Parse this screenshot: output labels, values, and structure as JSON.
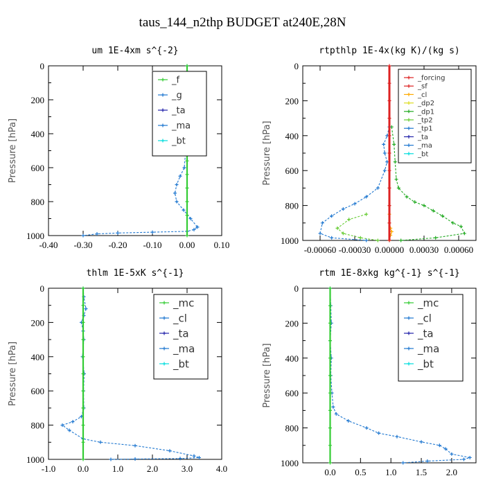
{
  "figure_title": "taus_144_n2thp  BUDGET at240E,28N",
  "chart_data": [
    {
      "type": "line",
      "title": "um   1E-4xm s^{-2}",
      "ylabel": "Pressure [hPa]",
      "xlabel": "",
      "xlim": [
        -0.4,
        0.1
      ],
      "ylim": [
        1000,
        0
      ],
      "xticks": [
        "-0.40",
        "-0.30",
        "-0.20",
        "-0.10",
        "0.00",
        "0.10"
      ],
      "xtick_values": [
        -0.4,
        -0.3,
        -0.2,
        -0.1,
        0.0,
        0.1
      ],
      "yticks": [
        "0",
        "200",
        "400",
        "600",
        "800",
        "1000"
      ],
      "legend": [
        "_f",
        "_g",
        "_ta",
        "_ma",
        "_bt"
      ],
      "legend_placement": "top-right",
      "series": [
        {
          "name": "_f",
          "color": "#33cc33",
          "x": [
            0.0,
            0.0,
            0.0,
            0.0,
            0.0,
            0.0,
            0.0,
            0.0,
            0.0,
            0.0,
            0.0,
            0.0,
            0.0
          ],
          "y": [
            0,
            80,
            160,
            240,
            320,
            400,
            480,
            560,
            640,
            720,
            800,
            880,
            1000
          ]
        },
        {
          "name": "_g",
          "color": "#1f77d0",
          "x": [
            0.0,
            0.002,
            -0.003,
            0.004,
            -0.002,
            0.003,
            -0.005,
            0.0,
            -0.004,
            -0.008,
            -0.02,
            -0.03,
            -0.035,
            -0.03,
            -0.01,
            0.01,
            0.03,
            0.02,
            0.0,
            -0.1,
            -0.2,
            -0.26,
            -0.3
          ],
          "y": [
            0,
            50,
            100,
            150,
            200,
            250,
            300,
            400,
            500,
            600,
            650,
            700,
            750,
            800,
            850,
            900,
            950,
            965,
            975,
            980,
            985,
            990,
            1000
          ]
        },
        {
          "name": "_ta",
          "color": "#2222aa",
          "x": [],
          "y": []
        },
        {
          "name": "_ma",
          "color": "#1f77d0",
          "x": [],
          "y": []
        },
        {
          "name": "_bt",
          "color": "#00dddd",
          "x": [],
          "y": []
        }
      ]
    },
    {
      "type": "line",
      "title": "rtpthlp   1E-4x(kg K)/(kg s)",
      "ylabel": "Pressure [hPa]",
      "xlabel": "",
      "xlim": [
        -0.00075,
        0.00075
      ],
      "ylim": [
        1000,
        0
      ],
      "xticks": [
        "-0.00060",
        "-0.00030",
        "0.00000",
        "0.00030",
        "0.00060"
      ],
      "xtick_values": [
        -0.0006,
        -0.0003,
        0.0,
        0.0003,
        0.0006
      ],
      "yticks": [
        "0",
        "200",
        "400",
        "600",
        "800",
        "1000"
      ],
      "legend": [
        "_forcing",
        "_sf",
        "_cl",
        "_dp2",
        "_dp1",
        "_tp2",
        "_tp1",
        "_ta",
        "_ma",
        "_bt"
      ],
      "legend_placement": "top-right",
      "series": [
        {
          "name": "_forcing",
          "color": "#dd2222",
          "x": [
            0,
            0,
            0,
            0,
            0,
            0,
            0,
            0,
            0,
            0,
            0
          ],
          "y": [
            0,
            100,
            200,
            300,
            400,
            500,
            600,
            700,
            800,
            900,
            1000
          ]
        },
        {
          "name": "_sf",
          "color": "#dd2222",
          "x": [],
          "y": []
        },
        {
          "name": "_cl",
          "color": "#ffaa00",
          "x": [
            0,
            0,
            0,
            1e-05,
            2e-05,
            1e-05,
            0
          ],
          "y": [
            800,
            850,
            900,
            930,
            950,
            970,
            1000
          ]
        },
        {
          "name": "_dp2",
          "color": "#dddd22",
          "x": [],
          "y": []
        },
        {
          "name": "_dp1",
          "color": "#22aa22",
          "x": [
            2e-05,
            4e-05,
            5e-05,
            6e-05,
            8e-05,
            0.00015,
            0.00022,
            0.0003,
            0.00038,
            0.00046,
            0.00055,
            0.00062,
            0.00065,
            0.0004,
            0.0001
          ],
          "y": [
            350,
            450,
            550,
            650,
            700,
            750,
            780,
            800,
            830,
            860,
            900,
            920,
            960,
            985,
            1000
          ]
        },
        {
          "name": "_tp2",
          "color": "#66cc33",
          "x": [
            -0.0002,
            -0.00035,
            -0.00045,
            -0.0004,
            -0.00025,
            -0.0001
          ],
          "y": [
            850,
            880,
            930,
            960,
            985,
            1000
          ]
        },
        {
          "name": "_tp1",
          "color": "#1f77d0",
          "x": [
            0,
            -2e-05,
            -5e-05,
            -4e-05,
            -2e-05,
            -4e-05,
            -0.0001,
            -0.0002,
            -0.0003,
            -0.0004,
            -0.0005,
            -0.00058,
            -0.0006,
            -0.0005,
            -0.0002
          ],
          "y": [
            350,
            400,
            450,
            500,
            550,
            600,
            700,
            750,
            790,
            820,
            860,
            900,
            960,
            985,
            1000
          ]
        },
        {
          "name": "_ta",
          "color": "#2222aa",
          "x": [],
          "y": []
        },
        {
          "name": "_ma",
          "color": "#1f77d0",
          "x": [],
          "y": []
        },
        {
          "name": "_bt",
          "color": "#00dddd",
          "x": [],
          "y": []
        }
      ]
    },
    {
      "type": "line",
      "title": "thlm   1E-5xK s^{-1}",
      "ylabel": "Pressure [hPa]",
      "xlabel": "",
      "xlim": [
        -1.0,
        4.0
      ],
      "ylim": [
        1000,
        0
      ],
      "xticks": [
        "-1.0",
        "0.0",
        "1.0",
        "2.0",
        "3.0",
        "4.0"
      ],
      "xtick_values": [
        -1.0,
        0.0,
        1.0,
        2.0,
        3.0,
        4.0
      ],
      "yticks": [
        "0",
        "200",
        "400",
        "600",
        "800",
        "1000"
      ],
      "legend": [
        "_mc",
        "_cl",
        "_ta",
        "_ma",
        "_bt"
      ],
      "legend_placement": "top-right",
      "series": [
        {
          "name": "_mc",
          "color": "#33cc33",
          "x": [
            0,
            0,
            0,
            0,
            0,
            0,
            0,
            0,
            0,
            0,
            0
          ],
          "y": [
            0,
            100,
            200,
            300,
            400,
            500,
            600,
            700,
            800,
            900,
            1000
          ]
        },
        {
          "name": "_cl",
          "color": "#1f77d0",
          "x": [
            0,
            0.02,
            0.08,
            0.02,
            -0.05,
            0.0,
            0.02,
            -0.02,
            0.03,
            0.01,
            0.02,
            -0.05,
            -0.3,
            -0.6,
            -0.4,
            0.0,
            0.5,
            1.5,
            2.5,
            3.2,
            3.35,
            2.8,
            1.5,
            0.8
          ],
          "y": [
            0,
            50,
            120,
            160,
            200,
            250,
            300,
            400,
            500,
            600,
            700,
            750,
            780,
            800,
            830,
            880,
            900,
            920,
            950,
            980,
            990,
            995,
            998,
            1000
          ]
        },
        {
          "name": "_ta",
          "color": "#2222aa",
          "x": [],
          "y": []
        },
        {
          "name": "_ma",
          "color": "#1f77d0",
          "x": [],
          "y": []
        },
        {
          "name": "_bt",
          "color": "#00dddd",
          "x": [],
          "y": []
        }
      ]
    },
    {
      "type": "line",
      "title": "rtm   1E-8xkg kg^{-1} s^{-1}",
      "ylabel": "Pressure [hPa]",
      "xlabel": "",
      "xlim": [
        -0.45,
        2.4
      ],
      "ylim": [
        1000,
        0
      ],
      "xticks": [
        "0.0",
        "0.5",
        "1.0",
        "1.5",
        "2.0"
      ],
      "xtick_values": [
        0.0,
        0.5,
        1.0,
        1.5,
        2.0
      ],
      "yticks": [
        "0",
        "200",
        "400",
        "600",
        "800",
        "1000"
      ],
      "legend": [
        "_mc",
        "_cl",
        "_ta",
        "_ma",
        "_bt"
      ],
      "legend_placement": "top-right",
      "series": [
        {
          "name": "_mc",
          "color": "#33cc33",
          "x": [
            0,
            0,
            0,
            0,
            0,
            0,
            0,
            0,
            0,
            0,
            0
          ],
          "y": [
            0,
            100,
            200,
            300,
            400,
            500,
            600,
            700,
            800,
            900,
            1000
          ]
        },
        {
          "name": "_cl",
          "color": "#1f77d0",
          "x": [
            0,
            0.01,
            0.02,
            0.0,
            0.02,
            0.01,
            0.03,
            0.05,
            0.1,
            0.3,
            0.6,
            0.8,
            1.1,
            1.5,
            1.8,
            1.9,
            2.0,
            2.3,
            2.2,
            1.6,
            1.2
          ],
          "y": [
            0,
            100,
            200,
            300,
            400,
            500,
            600,
            680,
            720,
            760,
            800,
            830,
            850,
            880,
            900,
            920,
            950,
            970,
            980,
            990,
            1000
          ]
        },
        {
          "name": "_ta",
          "color": "#2222aa",
          "x": [],
          "y": []
        },
        {
          "name": "_ma",
          "color": "#1f77d0",
          "x": [],
          "y": []
        },
        {
          "name": "_bt",
          "color": "#00dddd",
          "x": [],
          "y": []
        }
      ]
    }
  ]
}
